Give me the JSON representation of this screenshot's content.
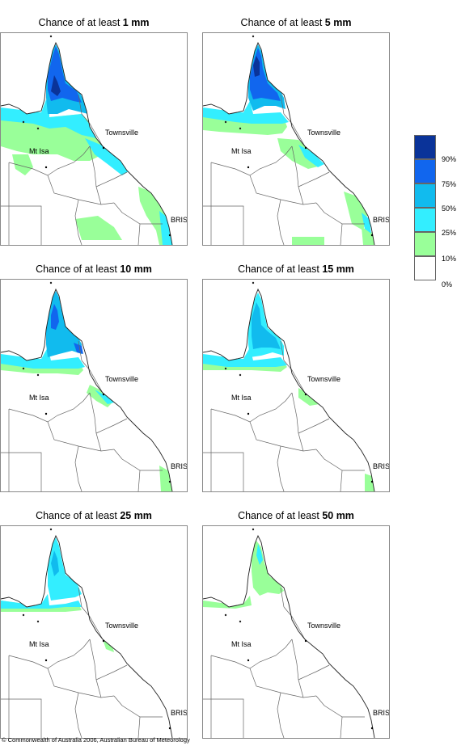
{
  "panels": [
    {
      "title_prefix": "Chance of at least ",
      "threshold": "1 mm",
      "level": 6
    },
    {
      "title_prefix": "Chance of at least ",
      "threshold": "5 mm",
      "level": 5
    },
    {
      "title_prefix": "Chance of at least ",
      "threshold": "10 mm",
      "level": 4
    },
    {
      "title_prefix": "Chance of at least ",
      "threshold": "15 mm",
      "level": 3
    },
    {
      "title_prefix": "Chance of at least ",
      "threshold": "25 mm",
      "level": 2
    },
    {
      "title_prefix": "Chance of at least ",
      "threshold": "50 mm",
      "level": 1
    }
  ],
  "places": {
    "townsville": "Townsville",
    "mt_isa": "Mt Isa",
    "brisbane": "BRIS"
  },
  "legend": {
    "labels": [
      "90%",
      "75%",
      "50%",
      "25%",
      "10%",
      "0%"
    ],
    "colors": [
      "#0a3399",
      "#1166ee",
      "#11bbee",
      "#33eeff",
      "#99ff99",
      "#ffffff"
    ]
  },
  "copyright": "© Commonwealth of Australia 2006, Australian Bureau of Meteorology"
}
